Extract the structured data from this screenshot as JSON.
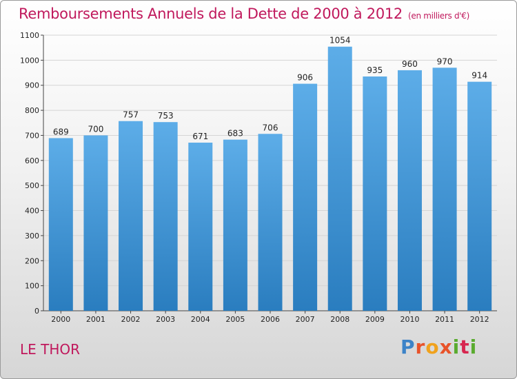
{
  "header": {
    "title": "Remboursements Annuels de la Dette de 2000 à 2012",
    "unit": "(en milliers d'€)"
  },
  "footer": {
    "city": "LE THOR",
    "logo": "Proxiti"
  },
  "colors": {
    "title": "#c0185c",
    "bar_top": "#5dade8",
    "bar_bottom": "#2a7dbf",
    "grid": "#d4d4d4"
  },
  "chart_data": {
    "type": "bar",
    "title": "Remboursements Annuels de la Dette de 2000 à 2012",
    "subtitle": "(en milliers d'€)",
    "categories": [
      "2000",
      "2001",
      "2002",
      "2003",
      "2004",
      "2005",
      "2006",
      "2007",
      "2008",
      "2009",
      "2010",
      "2011",
      "2012"
    ],
    "values": [
      689,
      700,
      757,
      753,
      671,
      683,
      706,
      906,
      1054,
      935,
      960,
      970,
      914
    ],
    "ylim": [
      0,
      1100
    ],
    "yticks": [
      0,
      100,
      200,
      300,
      400,
      500,
      600,
      700,
      800,
      900,
      1000,
      1100
    ],
    "grid": true,
    "data_labels": true
  }
}
